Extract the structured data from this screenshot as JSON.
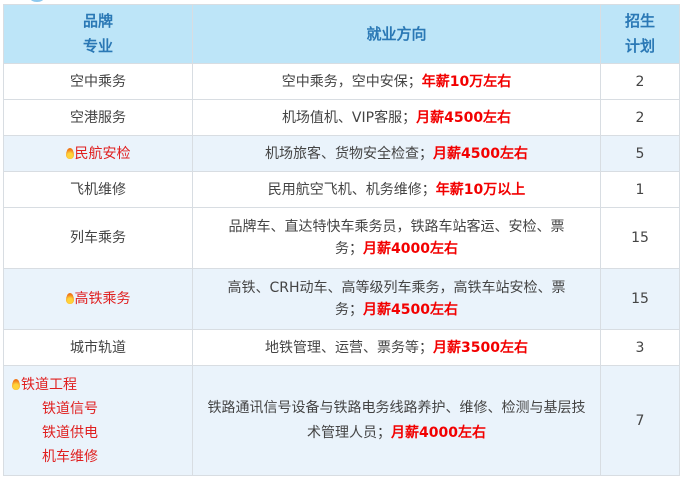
{
  "header": {
    "col1": [
      "品牌",
      "专业"
    ],
    "col2": "就业方向",
    "col3": [
      "招生",
      "计划"
    ]
  },
  "colors": {
    "header_bg": "#bde5f8",
    "header_text": "#2a78b5",
    "salary": "#f20000",
    "highlight_row": "#eaf3fb"
  },
  "rows": [
    {
      "name": "空中乘务",
      "desc": "空中乘务，空中安保；",
      "salary": "年薪10万左右",
      "plan": "2"
    },
    {
      "name": "空港服务",
      "desc": "机场值机、VIP客服；",
      "salary": "月薪4500左右",
      "plan": "2"
    },
    {
      "name": "民航安检",
      "hot": true,
      "desc": "机场旅客、货物安全检查；",
      "salary": "月薪4500左右",
      "plan": "5"
    },
    {
      "name": "飞机维修",
      "desc": "民用航空飞机、机务维修；",
      "salary": "年薪10万以上",
      "plan": "1"
    },
    {
      "name": "列车乘务",
      "desc": "品牌车、直达特快车乘务员，铁路车站客运、安检、票务；",
      "salary": "月薪4000左右",
      "plan": "15"
    },
    {
      "name": "高铁乘务",
      "hot": true,
      "desc": "高铁、CRH动车、高等级列车乘务，高铁车站安检、票务；",
      "salary": "月薪4500左右",
      "plan": "15"
    },
    {
      "name": "城市轨道",
      "desc": "地铁管理、运营、票务等；",
      "salary": "月薪3500左右",
      "plan": "3"
    },
    {
      "name": "铁道工程",
      "hot": true,
      "subs": [
        "铁道信号",
        "铁道供电",
        "机车维修"
      ],
      "desc": "铁路通讯信号设备与铁路电务线路养护、维修、检测与基层技术管理人员；",
      "salary": "月薪4000左右",
      "plan": "7"
    }
  ]
}
